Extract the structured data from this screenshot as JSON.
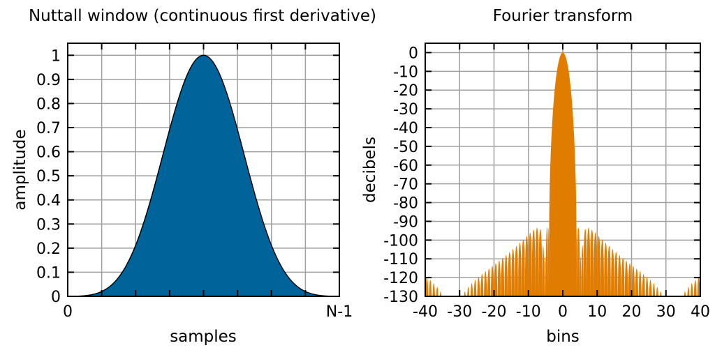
{
  "chart_data": [
    {
      "type": "area",
      "title": "Nuttall window (continuous first derivative)",
      "xlabel": "samples",
      "ylabel": "amplitude",
      "x_tick_labels": [
        "0",
        "N-1"
      ],
      "y_ticks": [
        0,
        0.1,
        0.2,
        0.3,
        0.4,
        0.5,
        0.6,
        0.7,
        0.8,
        0.9,
        1
      ],
      "y_tick_labels": [
        "0",
        "0.1",
        "0.2",
        "0.3",
        "0.4",
        "0.5",
        "0.6",
        "0.7",
        "0.8",
        "0.9",
        "1"
      ],
      "ylim": [
        0,
        1.05
      ],
      "grid": true,
      "color": "#00639a",
      "x_fraction": [
        0,
        0.0625,
        0.125,
        0.1875,
        0.25,
        0.3125,
        0.375,
        0.4375,
        0.5,
        0.5625,
        0.625,
        0.6875,
        0.75,
        0.8125,
        0.875,
        0.9375,
        1
      ],
      "values": [
        0,
        0.0026,
        0.02,
        0.0789,
        0.2115,
        0.4287,
        0.6915,
        0.9129,
        1.0,
        0.9129,
        0.6915,
        0.4287,
        0.2115,
        0.0789,
        0.02,
        0.0026,
        0
      ]
    },
    {
      "type": "area",
      "title": "Fourier transform",
      "xlabel": "bins",
      "ylabel": "decibels",
      "x_ticks": [
        -40,
        -30,
        -20,
        -10,
        0,
        10,
        20,
        30,
        40
      ],
      "x_tick_labels": [
        "-40",
        "-30",
        "-20",
        "-10",
        "0",
        "10",
        "20",
        "30",
        "40"
      ],
      "y_ticks": [
        0,
        -10,
        -20,
        -30,
        -40,
        -50,
        -60,
        -70,
        -80,
        -90,
        -100,
        -110,
        -120,
        -130
      ],
      "y_tick_labels": [
        "0",
        "-10",
        "-20",
        "-30",
        "-40",
        "-50",
        "-60",
        "-70",
        "-80",
        "-90",
        "-100",
        "-110",
        "-120",
        "-130"
      ],
      "xlim": [
        -40,
        40
      ],
      "ylim": [
        -130,
        5
      ],
      "grid": true,
      "color": "#e07c00",
      "main_lobe_peak_db": 0,
      "first_sidelobe_db": -93
    }
  ]
}
